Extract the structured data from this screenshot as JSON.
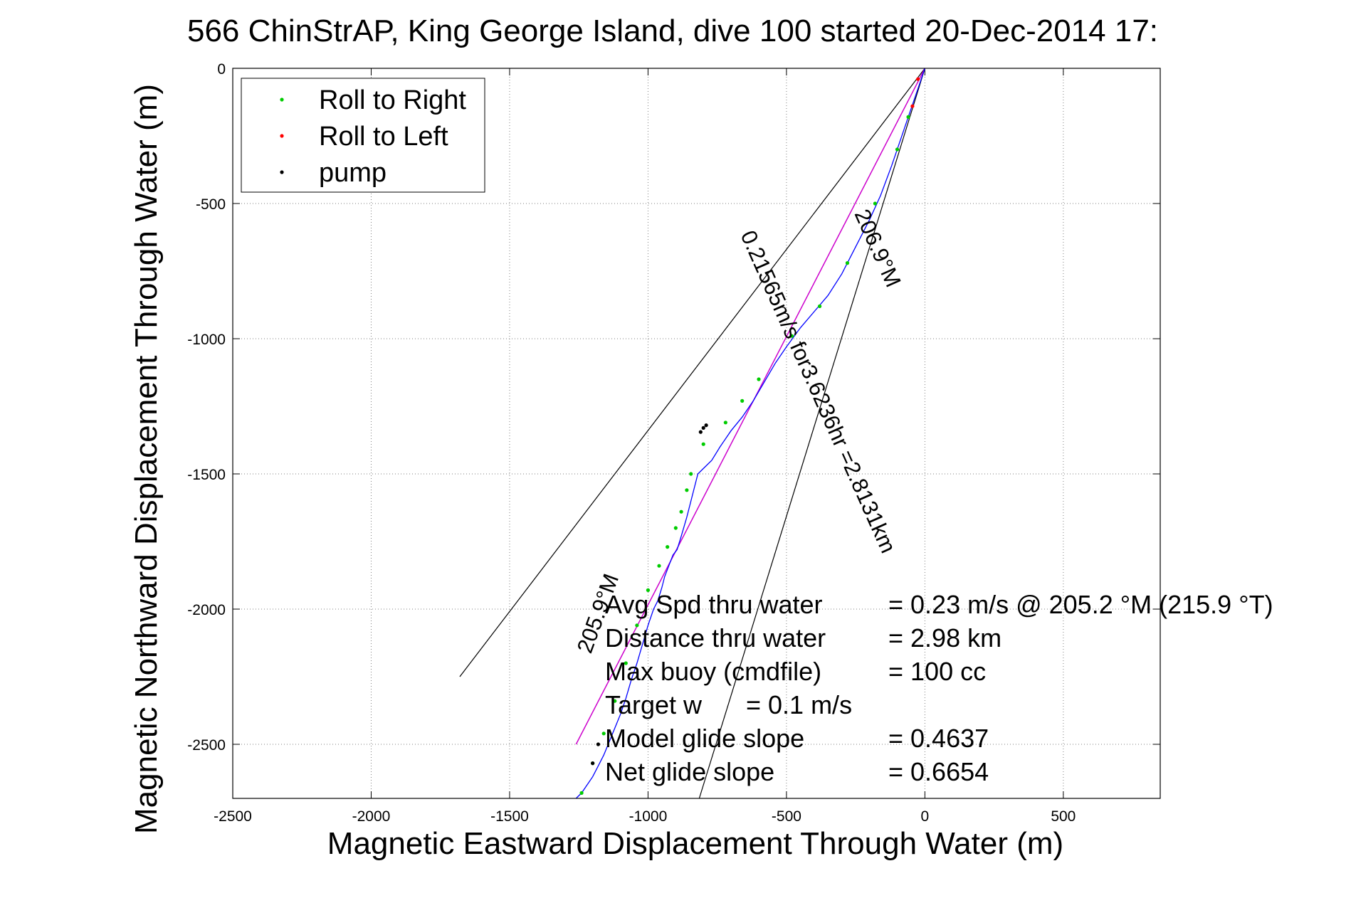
{
  "chart_data": {
    "type": "line",
    "title": "566 ChinStrAP, King George Island, dive 100 started 20-Dec-2014 17:",
    "xlabel": "Magnetic Eastward Displacement Through Water (m)",
    "ylabel": "Magnetic Northward Displacement Through Water (m)",
    "xlim": [
      -2500,
      850
    ],
    "ylim": [
      -2700,
      0
    ],
    "xticks": [
      -2500,
      -2000,
      -1500,
      -1000,
      -500,
      0,
      500
    ],
    "xtick_labels": [
      "-2500",
      "-2000",
      "-1500",
      "-1000",
      "-500",
      "0",
      "500"
    ],
    "yticks": [
      0,
      -500,
      -1000,
      -1500,
      -2000,
      -2500
    ],
    "ytick_labels": [
      "0",
      "-500",
      "-1000",
      "-1500",
      "-2000",
      "-2500"
    ],
    "grid": true,
    "legend_position": "top-left",
    "legend": [
      {
        "label": "Roll to Right",
        "color": "#00cc00"
      },
      {
        "label": "Roll to Left",
        "color": "#ff0000"
      },
      {
        "label": "pump",
        "color": "#000000"
      }
    ],
    "track": {
      "name": "Track",
      "color": "#0000ff",
      "x": [
        0,
        -40,
        -80,
        -120,
        -160,
        -200,
        -250,
        -300,
        -350,
        -400,
        -450,
        -500,
        -540,
        -580,
        -620,
        -660,
        -700,
        -740,
        -770,
        -800,
        -820,
        -840,
        -860,
        -880,
        -895,
        -910,
        -925,
        -940,
        -950,
        -965,
        -980,
        -1000,
        -1020,
        -1040,
        -1060,
        -1080,
        -1100,
        -1120,
        -1140,
        -1160,
        -1180,
        -1200,
        -1220,
        -1240,
        -1260
      ],
      "y": [
        0,
        -120,
        -240,
        -360,
        -470,
        -560,
        -660,
        -760,
        -840,
        -900,
        -960,
        -1030,
        -1090,
        -1160,
        -1230,
        -1290,
        -1340,
        -1400,
        -1450,
        -1480,
        -1500,
        -1580,
        -1660,
        -1730,
        -1780,
        -1800,
        -1840,
        -1880,
        -1920,
        -1970,
        -2000,
        -2060,
        -2130,
        -2200,
        -2260,
        -2330,
        -2390,
        -2440,
        -2490,
        -2540,
        -2580,
        -2620,
        -2650,
        -2680,
        -2700
      ]
    },
    "roll_right_points": {
      "x": [
        -60,
        -100,
        -180,
        -280,
        -380,
        -480,
        -600,
        -660,
        -720,
        -800,
        -845,
        -860,
        -880,
        -900,
        -930,
        -960,
        -1000,
        -1040,
        -1080,
        -1120,
        -1160,
        -1200,
        -1240
      ],
      "y": [
        -180,
        -300,
        -500,
        -720,
        -880,
        -990,
        -1150,
        -1230,
        -1310,
        -1390,
        -1500,
        -1560,
        -1640,
        -1700,
        -1770,
        -1840,
        -1930,
        -2060,
        -2200,
        -2340,
        -2460,
        -2570,
        -2680
      ]
    },
    "roll_left_points": {
      "x": [
        -25,
        -45
      ],
      "y": [
        -40,
        -140
      ]
    },
    "pump_points": {
      "x": [
        -790,
        -800,
        -810,
        -1180,
        -1200
      ],
      "y": [
        -1320,
        -1330,
        -1345,
        -2500,
        -2570
      ]
    },
    "glide_line": {
      "color": "#cc00cc",
      "x": [
        0,
        -1260
      ],
      "y": [
        0,
        -2500
      ]
    },
    "bearing_lines": [
      {
        "x": [
          0,
          -1680
        ],
        "y": [
          0,
          -2250
        ]
      },
      {
        "x": [
          0,
          -815
        ],
        "y": [
          0,
          -2700
        ]
      }
    ],
    "annotations": [
      "206.9°M",
      "0.21565m/s for3.6236hr =2.8131km",
      "205.9°M"
    ],
    "stats": [
      {
        "label": "Avg Spd thru water",
        "value": "=  0.23 m/s @ 205.2 °M (215.9 °T)"
      },
      {
        "label": "Distance thru water",
        "value": "=  2.98 km"
      },
      {
        "label": "Max buoy (cmdfile)",
        "value": "= 100 cc"
      },
      {
        "label": "Target w",
        "value": "= 0.1 m/s"
      },
      {
        "label": "Model glide slope",
        "value": "= 0.4637"
      },
      {
        "label": "Net glide slope",
        "value": "= 0.6654"
      }
    ]
  }
}
